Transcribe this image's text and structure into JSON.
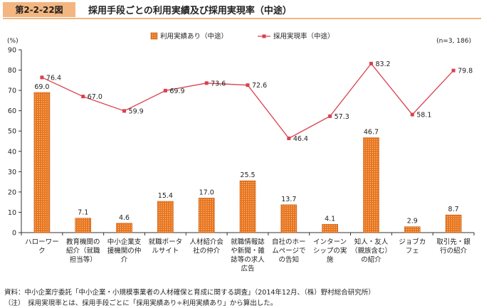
{
  "figure": {
    "number": "第2-2-22図",
    "title": "採用手段ごとの利用実績及び採用実現率（中途）"
  },
  "chart_data": {
    "type": "bar",
    "unit_label": "(%)",
    "sample_size": "(n=3, 186)",
    "ylim": [
      0,
      90
    ],
    "yticks": [
      0,
      10,
      20,
      30,
      40,
      50,
      60,
      70,
      80,
      90
    ],
    "categories": [
      [
        "ハローワー",
        "ク"
      ],
      [
        "教育機関の",
        "紹介（就職",
        "担当等）"
      ],
      [
        "中小企業支",
        "援機関の仲",
        "介"
      ],
      [
        "就職ポータ",
        "ルサイト"
      ],
      [
        "人材紹介会",
        "社の仲介"
      ],
      [
        "就職情報誌",
        "や新聞・雑",
        "誌等の求人",
        "広告"
      ],
      [
        "自社のホー",
        "ムページで",
        "の告知"
      ],
      [
        "インターン",
        "シップの実",
        "施"
      ],
      [
        "知人・友人",
        "（親族含む）",
        "の紹介"
      ],
      [
        "ジョブカ",
        "フェ"
      ],
      [
        "取引先・銀",
        "行の紹介"
      ]
    ],
    "series": [
      {
        "name": "利用実績あり（中途）",
        "type": "bar",
        "color": "#e8761f",
        "values": [
          69.0,
          7.1,
          4.6,
          15.4,
          17.0,
          25.5,
          13.7,
          4.1,
          46.7,
          2.9,
          8.7
        ],
        "labels": [
          "69.0",
          "7.1",
          "4.6",
          "15.4",
          "17.0",
          "25.5",
          "13.7",
          "4.1",
          "46.7",
          "2.9",
          "8.7"
        ]
      },
      {
        "name": "採用実現率（中途）",
        "type": "line",
        "color": "#d9414f",
        "values": [
          76.4,
          67.0,
          59.9,
          69.9,
          73.6,
          72.6,
          46.4,
          57.3,
          83.2,
          58.1,
          79.8
        ],
        "labels": [
          "76.4",
          "67.0",
          "59.9",
          "69.9",
          "73.6",
          "72.6",
          "46.4",
          "57.3",
          "83.2",
          "58.1",
          "79.8"
        ]
      }
    ],
    "grid": false,
    "legend": "top-center"
  },
  "notes": {
    "source": "資料：中小企業庁委託「中小企業・小規模事業者の人材確保と育成に関する調査」（2014年12月、（株）野村総合研究所）",
    "definition": "（注）　採用実現率とは、採用手段ごとに「採用実績あり÷利用実績あり」から算出した。"
  }
}
